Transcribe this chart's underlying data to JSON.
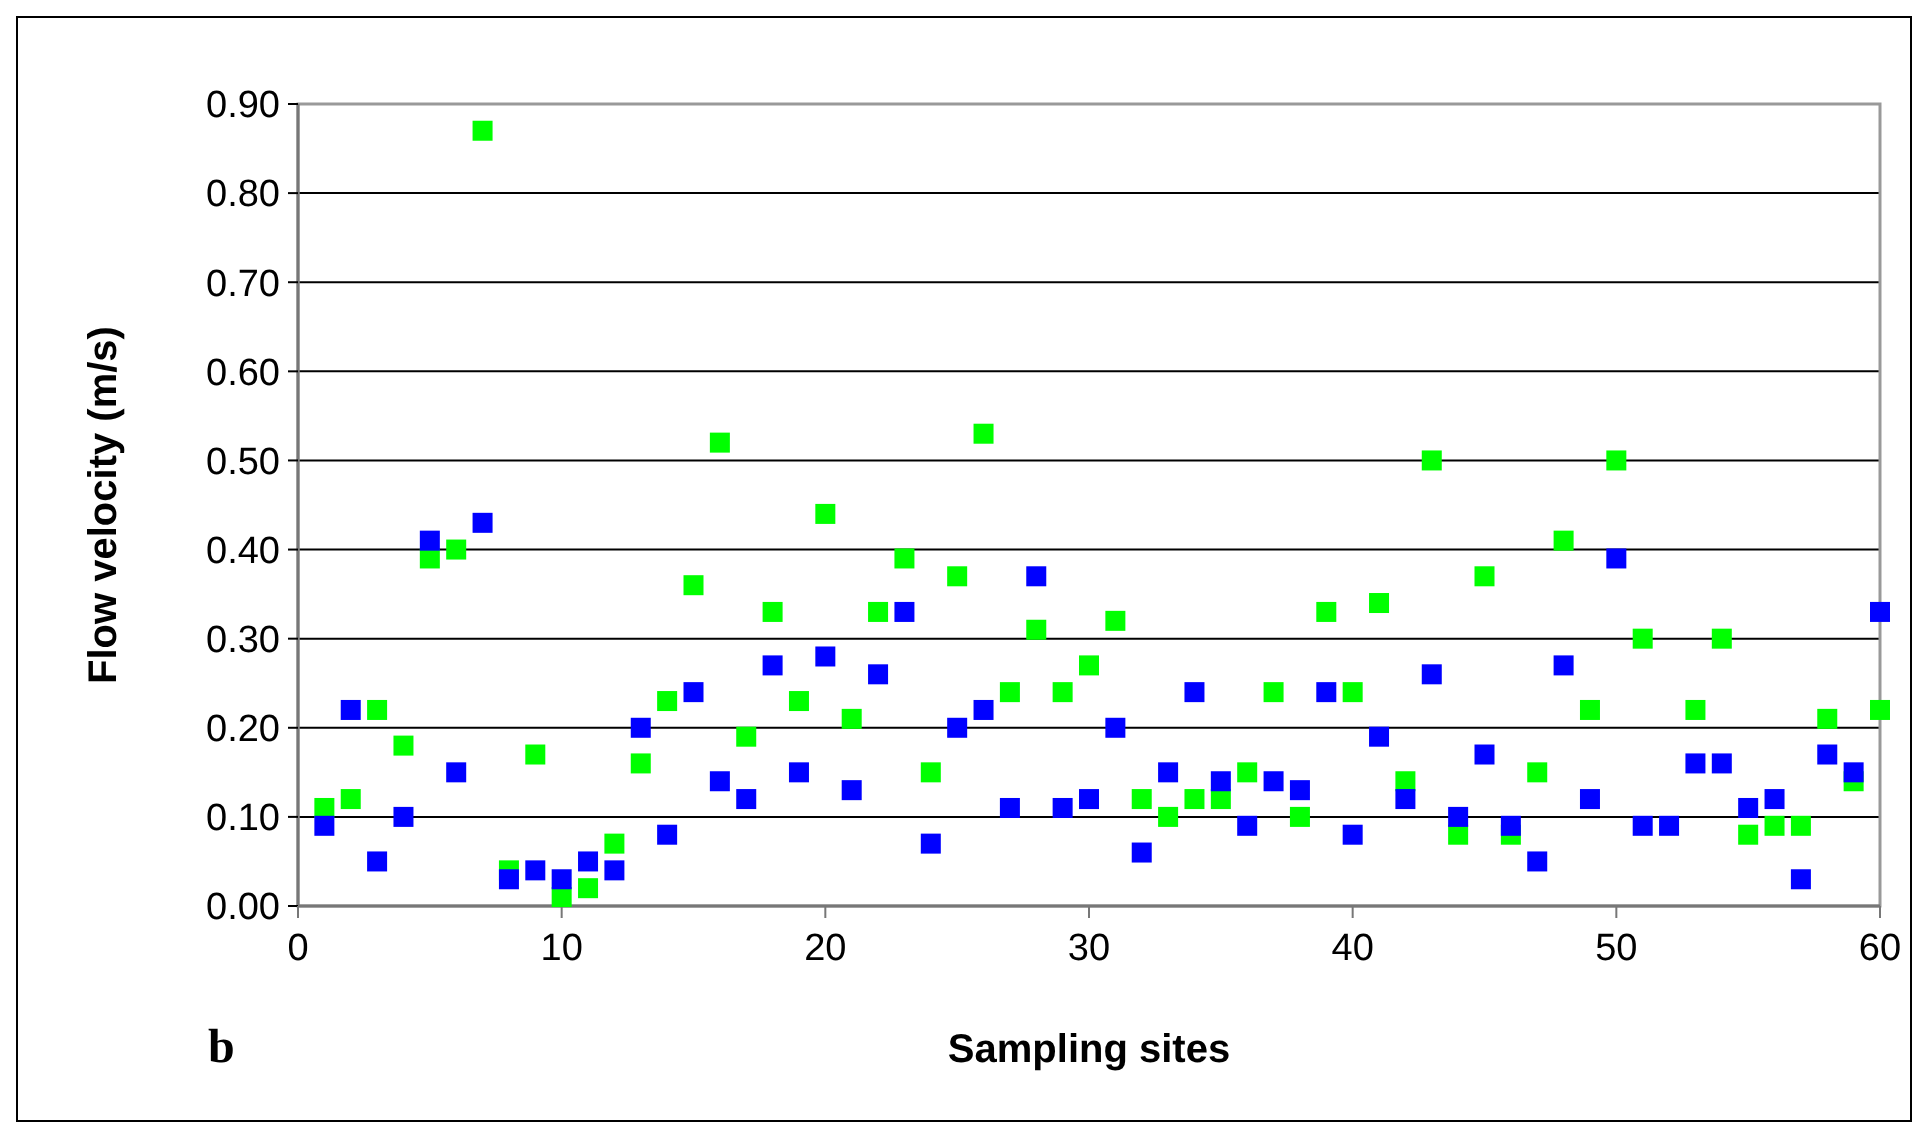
{
  "chart_data": {
    "type": "scatter",
    "xlabel": "Sampling sites",
    "ylabel": "Flow velocity (m/s)",
    "annotations": [
      "b"
    ],
    "marker": "square",
    "grid": "y",
    "x": [
      1,
      2,
      3,
      4,
      5,
      6,
      7,
      8,
      9,
      10,
      11,
      12,
      13,
      14,
      15,
      16,
      17,
      18,
      19,
      20,
      21,
      22,
      23,
      24,
      25,
      26,
      27,
      28,
      29,
      30,
      31,
      32,
      33,
      34,
      35,
      36,
      37,
      38,
      39,
      40,
      41,
      42,
      43,
      44,
      45,
      46,
      47,
      48,
      49,
      50,
      51,
      52,
      53,
      54,
      55,
      56,
      57,
      58,
      59,
      60
    ],
    "series": [
      {
        "color": "#00ff00",
        "values": [
          0.11,
          0.12,
          0.22,
          0.18,
          0.39,
          0.4,
          0.87,
          0.04,
          0.17,
          0.01,
          0.02,
          0.07,
          0.16,
          0.23,
          0.36,
          0.52,
          0.19,
          0.33,
          0.23,
          0.44,
          0.21,
          0.33,
          0.39,
          0.15,
          0.37,
          0.53,
          0.24,
          0.31,
          0.24,
          0.27,
          0.32,
          0.12,
          0.1,
          0.12,
          0.12,
          0.15,
          0.24,
          0.1,
          0.33,
          0.24,
          0.34,
          0.14,
          0.5,
          0.08,
          0.37,
          0.08,
          0.15,
          0.41,
          0.22,
          0.5,
          0.3,
          null,
          0.22,
          0.3,
          0.08,
          0.09,
          0.09,
          0.21,
          0.14,
          0.22
        ]
      },
      {
        "color": "#0000ff",
        "values": [
          0.09,
          0.22,
          0.05,
          0.1,
          0.41,
          0.15,
          0.43,
          0.03,
          0.04,
          0.03,
          0.05,
          0.04,
          0.2,
          0.08,
          0.24,
          0.14,
          0.12,
          0.27,
          0.15,
          0.28,
          0.13,
          0.26,
          0.33,
          0.07,
          0.2,
          0.22,
          0.11,
          0.37,
          0.11,
          0.12,
          0.2,
          0.06,
          0.15,
          0.24,
          0.14,
          0.09,
          0.14,
          0.13,
          0.24,
          0.08,
          0.19,
          0.12,
          0.26,
          0.1,
          0.17,
          0.09,
          0.05,
          0.27,
          0.12,
          0.39,
          0.09,
          0.09,
          0.16,
          0.16,
          0.11,
          0.12,
          0.03,
          0.17,
          0.15,
          0.33
        ]
      }
    ],
    "xlim": [
      0,
      60
    ],
    "xticks": [
      0,
      10,
      20,
      30,
      40,
      50,
      60
    ],
    "ylim": [
      0,
      0.9
    ],
    "yticks": [
      {
        "value": 0,
        "label": "0.00"
      },
      {
        "value": 0.1,
        "label": "0.10"
      },
      {
        "value": 0.2,
        "label": "0.20"
      },
      {
        "value": 0.3,
        "label": "0.30"
      },
      {
        "value": 0.4,
        "label": "0.40"
      },
      {
        "value": 0.5,
        "label": "0.50"
      },
      {
        "value": 0.6,
        "label": "0.60"
      },
      {
        "value": 0.7,
        "label": "0.70"
      },
      {
        "value": 0.8,
        "label": "0.80"
      },
      {
        "value": 0.9,
        "label": "0.90"
      }
    ]
  }
}
